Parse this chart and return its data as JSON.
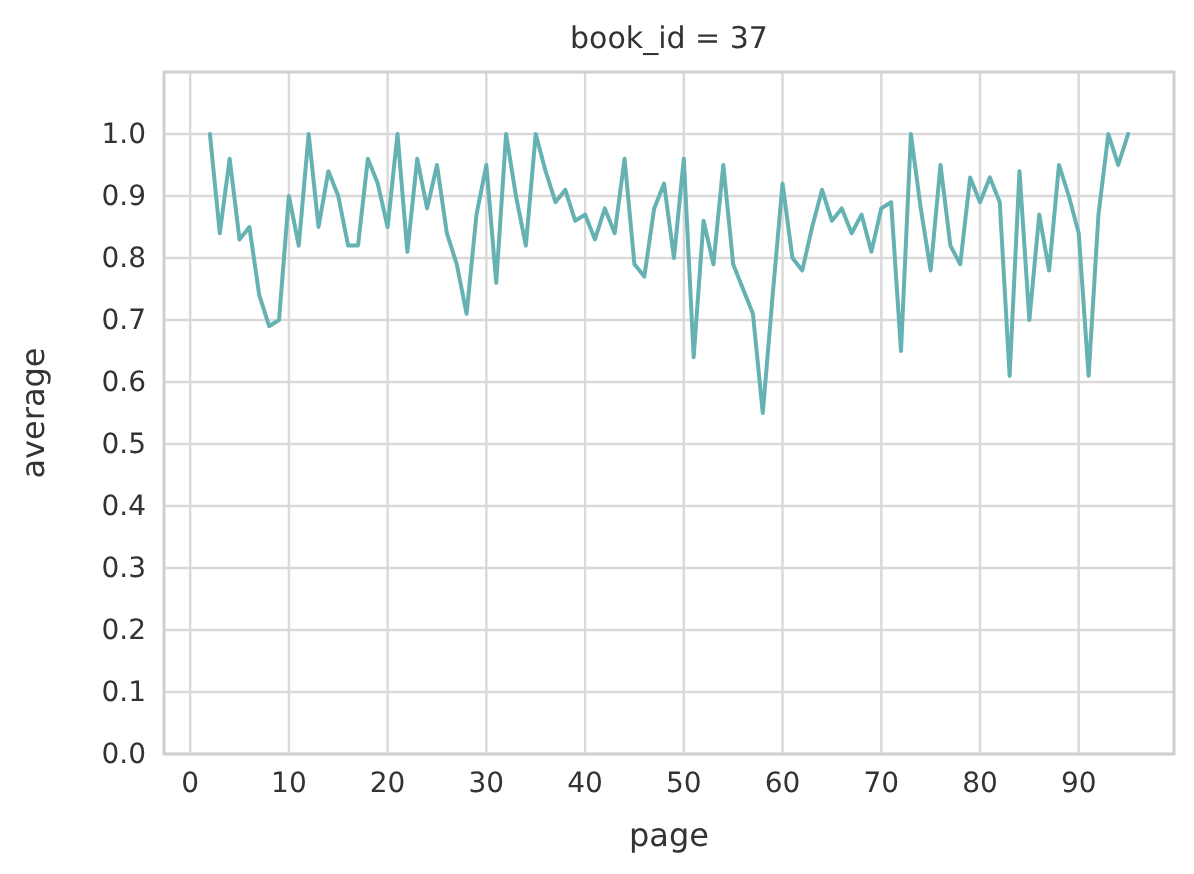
{
  "chart_data": {
    "type": "line",
    "title": "book_id = 37",
    "xlabel": "page",
    "ylabel": "average",
    "x": [
      2,
      3,
      4,
      5,
      6,
      7,
      8,
      9,
      10,
      11,
      12,
      13,
      14,
      15,
      16,
      17,
      18,
      19,
      20,
      21,
      22,
      23,
      24,
      25,
      26,
      27,
      28,
      29,
      30,
      31,
      32,
      33,
      34,
      35,
      36,
      37,
      38,
      39,
      40,
      41,
      42,
      43,
      44,
      45,
      46,
      47,
      48,
      49,
      50,
      51,
      52,
      53,
      54,
      55,
      56,
      57,
      58,
      59,
      60,
      61,
      62,
      63,
      64,
      65,
      66,
      67,
      68,
      69,
      70,
      71,
      72,
      73,
      74,
      75,
      76,
      77,
      78,
      79,
      80,
      81,
      82,
      83,
      84,
      85,
      86,
      87,
      88,
      89,
      90,
      91,
      92,
      93,
      94,
      95
    ],
    "series": [
      {
        "color": "#66b2b2",
        "values": [
          1.0,
          0.84,
          0.96,
          0.83,
          0.85,
          0.74,
          0.69,
          0.7,
          0.9,
          0.82,
          1.0,
          0.85,
          0.94,
          0.9,
          0.82,
          0.82,
          0.96,
          0.92,
          0.85,
          1.0,
          0.81,
          0.96,
          0.88,
          0.95,
          0.84,
          0.79,
          0.71,
          0.87,
          0.95,
          0.76,
          1.0,
          0.9,
          0.82,
          1.0,
          0.94,
          0.89,
          0.91,
          0.86,
          0.87,
          0.83,
          0.88,
          0.84,
          0.96,
          0.79,
          0.77,
          0.88,
          0.92,
          0.8,
          0.96,
          0.64,
          0.86,
          0.79,
          0.95,
          0.79,
          0.75,
          0.71,
          0.55,
          0.74,
          0.92,
          0.8,
          0.78,
          0.85,
          0.91,
          0.86,
          0.88,
          0.84,
          0.87,
          0.81,
          0.88,
          0.89,
          0.65,
          1.0,
          0.88,
          0.78,
          0.95,
          0.82,
          0.79,
          0.93,
          0.89,
          0.93,
          0.89,
          0.61,
          0.94,
          0.7,
          0.87,
          0.78,
          0.95,
          0.9,
          0.84,
          0.61,
          0.87,
          1.0,
          0.95,
          1.0
        ]
      }
    ],
    "xlim": [
      -2.65,
      99.65
    ],
    "ylim": [
      0,
      1.1
    ],
    "xticks": [
      0,
      10,
      20,
      30,
      40,
      50,
      60,
      70,
      80,
      90
    ],
    "yticks": [
      {
        "value": 0,
        "label": "0.0"
      },
      {
        "value": 0.1,
        "label": "0.1"
      },
      {
        "value": 0.2,
        "label": "0.2"
      },
      {
        "value": 0.3,
        "label": "0.3"
      },
      {
        "value": 0.4,
        "label": "0.4"
      },
      {
        "value": 0.5,
        "label": "0.5"
      },
      {
        "value": 0.6,
        "label": "0.6"
      },
      {
        "value": 0.7,
        "label": "0.7"
      },
      {
        "value": 0.8,
        "label": "0.8"
      },
      {
        "value": 0.9,
        "label": "0.9"
      },
      {
        "value": 1,
        "label": "1.0"
      }
    ],
    "grid": true
  }
}
